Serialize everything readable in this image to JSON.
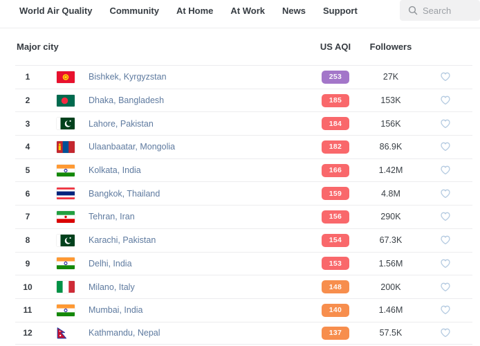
{
  "nav": {
    "items": [
      {
        "label": "World Air Quality"
      },
      {
        "label": "Community"
      },
      {
        "label": "At Home"
      },
      {
        "label": "At Work"
      },
      {
        "label": "News"
      },
      {
        "label": "Support"
      }
    ],
    "search": {
      "placeholder": "Search",
      "icon": "search-icon"
    }
  },
  "table": {
    "headers": {
      "city": "Major city",
      "aqi": "US AQI",
      "followers": "Followers"
    },
    "aqi_colors": {
      "purple": "#a376c9",
      "red": "#f9686b",
      "orange": "#f78e4d"
    },
    "heart_icon_color": "#b5cbe1",
    "rows": [
      {
        "rank": "1",
        "flag": "kyrgyzstan",
        "city": "Bishkek, Kyrgyzstan",
        "aqi": "253",
        "level": "purple",
        "followers": "27K"
      },
      {
        "rank": "2",
        "flag": "bangladesh",
        "city": "Dhaka, Bangladesh",
        "aqi": "185",
        "level": "red",
        "followers": "153K"
      },
      {
        "rank": "3",
        "flag": "pakistan",
        "city": "Lahore, Pakistan",
        "aqi": "184",
        "level": "red",
        "followers": "156K"
      },
      {
        "rank": "4",
        "flag": "mongolia",
        "city": "Ulaanbaatar, Mongolia",
        "aqi": "182",
        "level": "red",
        "followers": "86.9K"
      },
      {
        "rank": "5",
        "flag": "india",
        "city": "Kolkata, India",
        "aqi": "166",
        "level": "red",
        "followers": "1.42M"
      },
      {
        "rank": "6",
        "flag": "thailand",
        "city": "Bangkok, Thailand",
        "aqi": "159",
        "level": "red",
        "followers": "4.8M"
      },
      {
        "rank": "7",
        "flag": "iran",
        "city": "Tehran, Iran",
        "aqi": "156",
        "level": "red",
        "followers": "290K"
      },
      {
        "rank": "8",
        "flag": "pakistan",
        "city": "Karachi, Pakistan",
        "aqi": "154",
        "level": "red",
        "followers": "67.3K"
      },
      {
        "rank": "9",
        "flag": "india",
        "city": "Delhi, India",
        "aqi": "153",
        "level": "red",
        "followers": "1.56M"
      },
      {
        "rank": "10",
        "flag": "italy",
        "city": "Milano, Italy",
        "aqi": "148",
        "level": "orange",
        "followers": "200K"
      },
      {
        "rank": "11",
        "flag": "india",
        "city": "Mumbai, India",
        "aqi": "140",
        "level": "orange",
        "followers": "1.46M"
      },
      {
        "rank": "12",
        "flag": "nepal",
        "city": "Kathmandu, Nepal",
        "aqi": "137",
        "level": "orange",
        "followers": "57.5K"
      }
    ]
  }
}
